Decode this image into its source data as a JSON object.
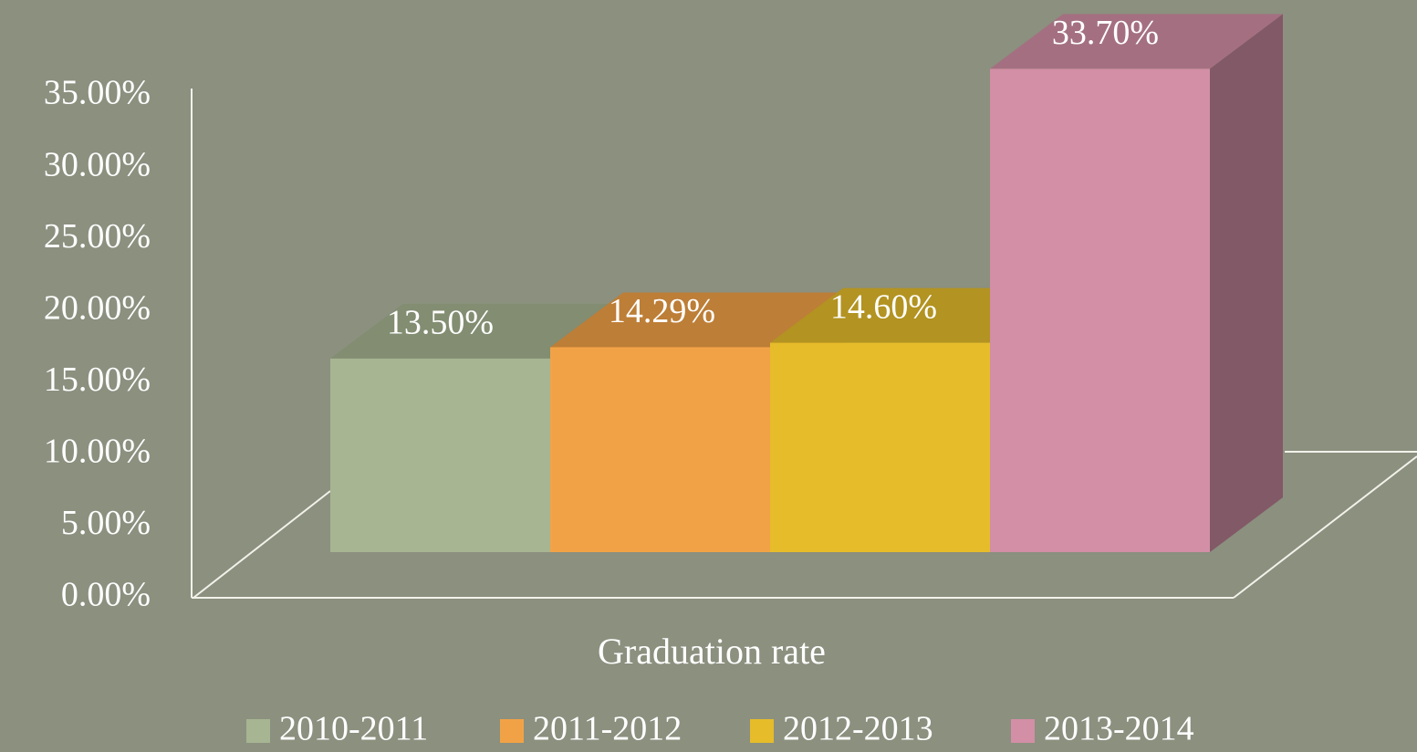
{
  "chart_data": {
    "type": "bar3d",
    "categories": [
      "Graduation rate"
    ],
    "series": [
      {
        "name": "2010-2011",
        "color": "#a7b592",
        "values": [
          13.5
        ],
        "value_labels": [
          "13.50%"
        ]
      },
      {
        "name": "2011-2012",
        "color": "#f2a246",
        "values": [
          14.29
        ],
        "value_labels": [
          "14.29%"
        ]
      },
      {
        "name": "2012-2013",
        "color": "#e6bc2a",
        "values": [
          14.6
        ],
        "value_labels": [
          "14.60%"
        ]
      },
      {
        "name": "2013-2014",
        "color": "#d28fa5",
        "values": [
          33.7
        ],
        "value_labels": [
          "33.70%"
        ]
      }
    ],
    "ylim": [
      0,
      35
    ],
    "yticks": [
      {
        "value": 0,
        "label": "0.00%"
      },
      {
        "value": 5,
        "label": "5.00%"
      },
      {
        "value": 10,
        "label": "10.00%"
      },
      {
        "value": 15,
        "label": "15.00%"
      },
      {
        "value": 20,
        "label": "20.00%"
      },
      {
        "value": 25,
        "label": "25.00%"
      },
      {
        "value": 30,
        "label": "30.00%"
      },
      {
        "value": 35,
        "label": "35.00%"
      }
    ],
    "legend": "bottom"
  }
}
